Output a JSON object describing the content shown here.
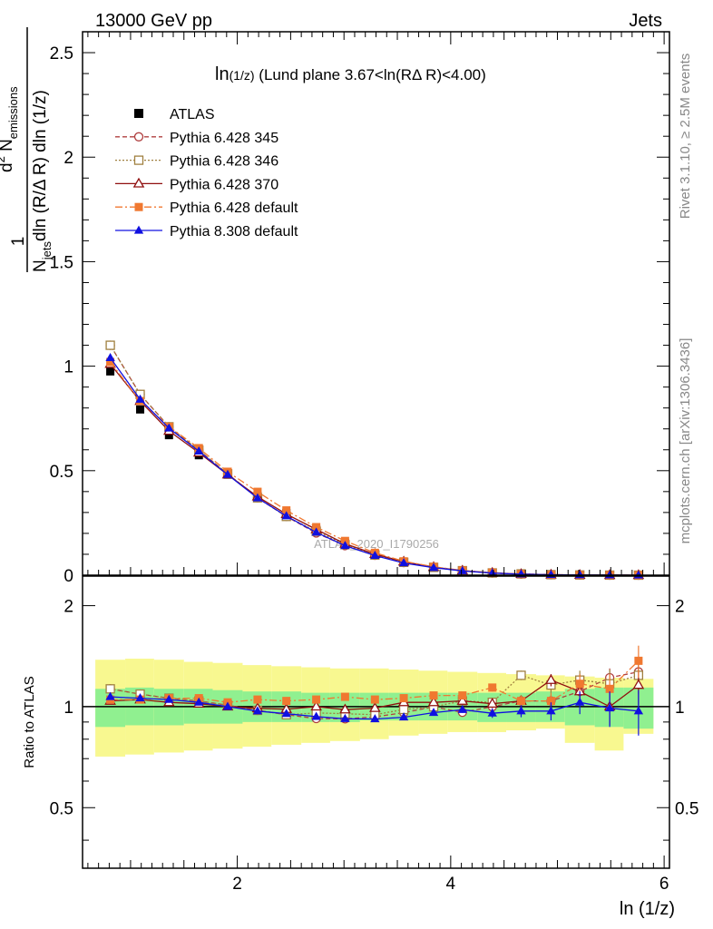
{
  "header": {
    "left": "13000 GeV pp",
    "right": "Jets"
  },
  "side_labels": {
    "rivet": "Rivet 3.1.10, ≥ 2.5M events",
    "mcplots": "mcplots.cern.ch [arXiv:1306.3436]"
  },
  "watermark": "ATLAS_2020_I1790256",
  "colors": {
    "band_inner": "#90f090",
    "band_outer": "#f8f890",
    "atlas": "#000000",
    "p6_345": "#b04040",
    "p6_346": "#a08040",
    "p6_370": "#901010",
    "p6_def": "#f07830",
    "p8_def": "#1010e0"
  },
  "chart_data": [
    {
      "type": "line",
      "title": "ln(1/z) (Lund plane 3.67<ln(RΔ R)<4.00)",
      "title_parts": [
        "ln",
        "(1/z)",
        " (Lund plane 3.67<ln(R",
        "Δ",
        " R)<4.00)"
      ],
      "ylabel": "1 / N_jets  d² N_emissions / dln (R/Δ R) dln (1/z)",
      "ylabel_parts": {
        "one": "1",
        "d2": "d",
        "sup2": "2",
        "N": " N",
        "sub_em": "emissions",
        "Nj": "N",
        "sub_jets": "jets",
        "den": "dln (R/Δ R) dln (1/z)"
      },
      "xlim": [
        0.55,
        6.05
      ],
      "ylim": [
        0,
        2.6
      ],
      "y_tick_labels": [
        "0",
        "0.5",
        "1",
        "1.5",
        "2",
        "2.5"
      ],
      "x": [
        0.81,
        1.09,
        1.36,
        1.64,
        1.91,
        2.19,
        2.46,
        2.74,
        3.01,
        3.29,
        3.56,
        3.84,
        4.11,
        4.39,
        4.66,
        4.94,
        5.21,
        5.49,
        5.76
      ],
      "legend_position": "top-left",
      "series": [
        {
          "name": "ATLAS",
          "marker": "square",
          "values": [
            0.975,
            0.793,
            0.67,
            0.574,
            0.481,
            0.38,
            0.297,
            0.219,
            0.153,
            0.102,
            0.0627,
            0.0374,
            0.0208,
            0.0106,
            0.00496,
            0.00206,
            0.00075,
            0.00023,
            6e-05
          ]
        },
        {
          "name": "Pythia 6.428 345",
          "marker": "circle-open",
          "dash": "5,3",
          "values": [
            1.1,
            0.865,
            0.71,
            0.598,
            0.485,
            0.37,
            0.281,
            0.202,
            0.141,
            0.095,
            0.0602,
            0.0374,
            0.02,
            0.0106,
            0.00516,
            0.00214,
            0.00083,
            0.00028,
            8e-05
          ]
        },
        {
          "name": "Pythia 6.428 346",
          "marker": "square-open",
          "dash": "2,2",
          "values": [
            1.1,
            0.865,
            0.71,
            0.598,
            0.485,
            0.37,
            0.281,
            0.21,
            0.146,
            0.0965,
            0.0615,
            0.0374,
            0.0216,
            0.0109,
            0.00615,
            0.00239,
            0.0009,
            0.00029,
            8e-05
          ]
        },
        {
          "name": "Pythia 6.428 370",
          "marker": "triangle-open",
          "dash": "",
          "values": [
            1.01,
            0.833,
            0.69,
            0.586,
            0.481,
            0.376,
            0.292,
            0.219,
            0.15,
            0.101,
            0.0645,
            0.0385,
            0.0216,
            0.0108,
            0.00516,
            0.00247,
            0.00083,
            0.00023,
            7e-05
          ]
        },
        {
          "name": "Pythia 6.428 default",
          "marker": "square",
          "dash": "8,3,2,3",
          "values": [
            1.02,
            0.833,
            0.71,
            0.608,
            0.495,
            0.399,
            0.31,
            0.23,
            0.164,
            0.107,
            0.0664,
            0.0404,
            0.0225,
            0.0121,
            0.00516,
            0.00214,
            0.00088,
            0.00026,
            8e-05
          ]
        },
        {
          "name": "Pythia 8.308 default",
          "marker": "triangle",
          "dash": "",
          "values": [
            1.04,
            0.841,
            0.703,
            0.593,
            0.481,
            0.369,
            0.283,
            0.205,
            0.141,
            0.0939,
            0.0583,
            0.0359,
            0.0204,
            0.0101,
            0.00481,
            0.002,
            0.00077,
            0.00023,
            6e-05
          ]
        }
      ]
    },
    {
      "type": "line",
      "ylabel": "Ratio to ATLAS",
      "xlabel": "ln (1/z)",
      "xlim": [
        0.55,
        6.05
      ],
      "ylim": [
        0.33,
        2.45
      ],
      "x_tick_labels": [
        "2",
        "4",
        "6"
      ],
      "y_tick_labels": [
        "0.5",
        "1",
        "2"
      ],
      "bin_edges": [
        0.67,
        0.95,
        1.22,
        1.5,
        1.77,
        2.05,
        2.32,
        2.6,
        2.87,
        3.15,
        3.42,
        3.7,
        3.97,
        4.25,
        4.52,
        4.8,
        5.07,
        5.35,
        5.62,
        5.9
      ],
      "band_inner": [
        [
          0.87,
          1.13
        ],
        [
          0.88,
          1.14
        ],
        [
          0.88,
          1.13
        ],
        [
          0.89,
          1.13
        ],
        [
          0.89,
          1.12
        ],
        [
          0.9,
          1.11
        ],
        [
          0.9,
          1.11
        ],
        [
          0.9,
          1.1
        ],
        [
          0.9,
          1.1
        ],
        [
          0.91,
          1.1
        ],
        [
          0.91,
          1.1
        ],
        [
          0.91,
          1.1
        ],
        [
          0.91,
          1.1
        ],
        [
          0.9,
          1.1
        ],
        [
          0.9,
          1.1
        ],
        [
          0.9,
          1.11
        ],
        [
          0.88,
          1.13
        ],
        [
          0.87,
          1.14
        ],
        [
          0.86,
          1.14
        ]
      ],
      "band_outer": [
        [
          0.71,
          1.38
        ],
        [
          0.72,
          1.39
        ],
        [
          0.73,
          1.38
        ],
        [
          0.74,
          1.36
        ],
        [
          0.75,
          1.35
        ],
        [
          0.76,
          1.33
        ],
        [
          0.77,
          1.32
        ],
        [
          0.78,
          1.31
        ],
        [
          0.79,
          1.3
        ],
        [
          0.8,
          1.3
        ],
        [
          0.82,
          1.29
        ],
        [
          0.83,
          1.28
        ],
        [
          0.84,
          1.27
        ],
        [
          0.84,
          1.26
        ],
        [
          0.85,
          1.25
        ],
        [
          0.86,
          1.24
        ],
        [
          0.78,
          1.23
        ],
        [
          0.74,
          1.22
        ],
        [
          0.83,
          1.21
        ]
      ],
      "series": [
        {
          "name": "Pythia 6.428 345",
          "values": [
            1.13,
            1.09,
            1.06,
            1.04,
            1.01,
            0.975,
            0.946,
            0.922,
            0.92,
            0.932,
            0.96,
            0.999,
            0.962,
            1.0,
            1.04,
            1.04,
            1.11,
            1.22,
            1.27
          ],
          "errors": [
            0.01,
            0.01,
            0.01,
            0.01,
            0.01,
            0.01,
            0.01,
            0.01,
            0.01,
            0.01,
            0.01,
            0.01,
            0.02,
            0.02,
            0.03,
            0.04,
            0.06,
            0.08,
            0.12
          ]
        },
        {
          "name": "Pythia 6.428 346",
          "values": [
            1.13,
            1.09,
            1.06,
            1.04,
            1.01,
            0.975,
            0.946,
            0.958,
            0.953,
            0.946,
            0.981,
            0.999,
            1.04,
            1.03,
            1.24,
            1.16,
            1.2,
            1.17,
            1.24
          ],
          "errors": [
            0.01,
            0.01,
            0.01,
            0.01,
            0.01,
            0.01,
            0.01,
            0.01,
            0.01,
            0.01,
            0.01,
            0.02,
            0.02,
            0.03,
            0.04,
            0.06,
            0.08,
            0.12,
            0.15
          ]
        },
        {
          "name": "Pythia 6.428 370",
          "values": [
            1.04,
            1.05,
            1.03,
            1.02,
            1.0,
            0.989,
            0.983,
            1.0,
            0.98,
            0.99,
            1.03,
            1.03,
            1.04,
            1.02,
            1.04,
            1.2,
            1.11,
            1.0,
            1.16
          ],
          "errors": [
            0.01,
            0.01,
            0.01,
            0.01,
            0.01,
            0.01,
            0.01,
            0.01,
            0.01,
            0.01,
            0.01,
            0.02,
            0.02,
            0.03,
            0.04,
            0.05,
            0.08,
            0.12,
            0.15
          ]
        },
        {
          "name": "Pythia 6.428 default",
          "values": [
            1.05,
            1.05,
            1.06,
            1.06,
            1.03,
            1.05,
            1.04,
            1.05,
            1.07,
            1.05,
            1.06,
            1.08,
            1.08,
            1.14,
            1.04,
            1.04,
            1.17,
            1.13,
            1.37
          ],
          "errors": [
            0.01,
            0.01,
            0.01,
            0.01,
            0.01,
            0.01,
            0.01,
            0.01,
            0.01,
            0.01,
            0.01,
            0.02,
            0.02,
            0.03,
            0.04,
            0.06,
            0.08,
            0.12,
            0.15
          ]
        },
        {
          "name": "Pythia 8.308 default",
          "values": [
            1.07,
            1.06,
            1.05,
            1.03,
            1.0,
            0.97,
            0.953,
            0.934,
            0.92,
            0.919,
            0.93,
            0.96,
            0.979,
            0.956,
            0.97,
            0.97,
            1.03,
            0.99,
            0.97
          ],
          "errors": [
            0.01,
            0.01,
            0.01,
            0.01,
            0.01,
            0.01,
            0.01,
            0.01,
            0.01,
            0.01,
            0.01,
            0.02,
            0.02,
            0.03,
            0.04,
            0.06,
            0.08,
            0.12,
            0.15
          ]
        }
      ]
    }
  ]
}
